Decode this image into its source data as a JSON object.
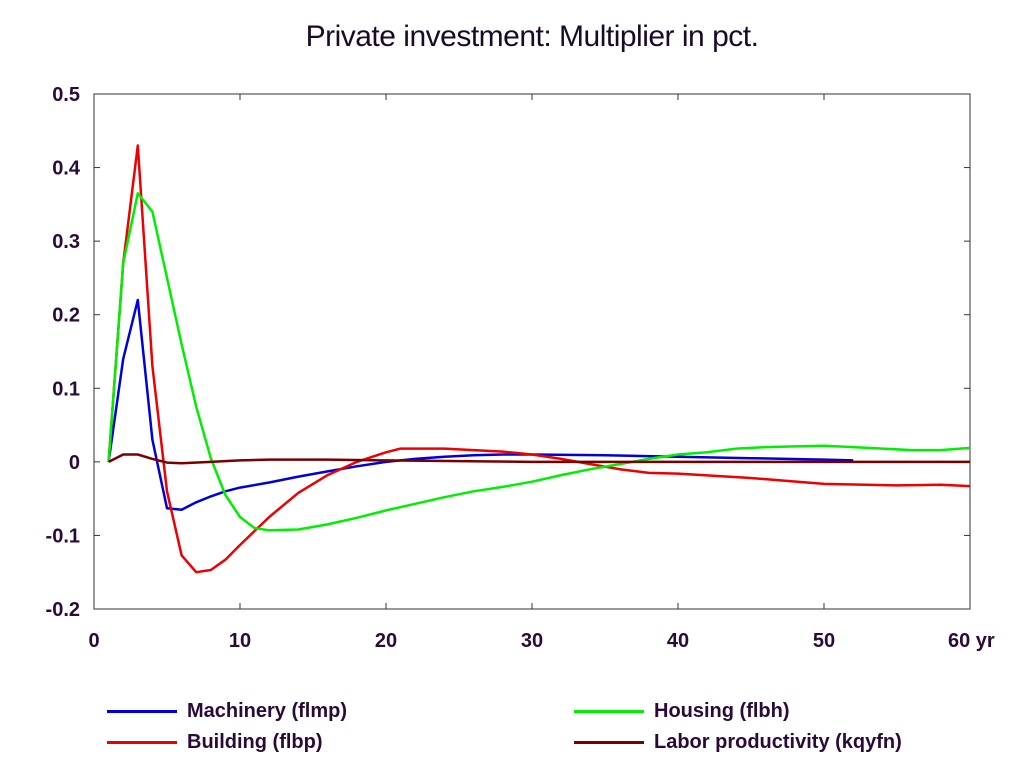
{
  "chart_data": {
    "type": "line",
    "title": "Private investment: Multiplier in pct.",
    "xlabel": "yr",
    "ylabel": "",
    "xlim": [
      0,
      60
    ],
    "ylim": [
      -0.2,
      0.5
    ],
    "xticks": [
      0,
      10,
      20,
      30,
      40,
      50,
      60
    ],
    "xtick_labels": [
      "0",
      "10",
      "20",
      "30",
      "40",
      "50",
      "60 yr"
    ],
    "yticks": [
      0.5,
      0.4,
      0.3,
      0.2,
      0.1,
      0,
      -0.1,
      -0.2
    ],
    "ytick_labels": [
      "0.5",
      "0.4",
      "0.3",
      "0.2",
      "0.1",
      "0",
      "-0.1",
      "-0.2"
    ],
    "grid": false,
    "legend_position": "bottom",
    "series": [
      {
        "name": "Machinery (flmp)",
        "color": "#0000dd",
        "x": [
          1,
          2,
          3,
          4,
          5,
          6,
          7,
          8,
          9,
          10,
          12,
          14,
          16,
          18,
          20,
          22,
          24,
          26,
          28,
          30,
          35,
          40,
          45,
          50,
          52
        ],
        "values": [
          0.0,
          0.14,
          0.22,
          0.03,
          -0.063,
          -0.065,
          -0.055,
          -0.047,
          -0.04,
          -0.035,
          -0.028,
          -0.02,
          -0.013,
          -0.006,
          0.0,
          0.004,
          0.007,
          0.009,
          0.01,
          0.01,
          0.009,
          0.007,
          0.005,
          0.003,
          0.002
        ]
      },
      {
        "name": "Building (flbp)",
        "color": "#ee0000",
        "x": [
          1,
          2,
          3,
          4,
          5,
          6,
          7,
          8,
          9,
          10,
          12,
          14,
          16,
          18,
          20,
          21,
          22,
          24,
          26,
          28,
          30,
          32,
          34,
          36,
          38,
          40,
          45,
          50,
          55,
          58,
          60
        ],
        "values": [
          0.0,
          0.27,
          0.43,
          0.13,
          -0.04,
          -0.127,
          -0.15,
          -0.147,
          -0.133,
          -0.113,
          -0.075,
          -0.042,
          -0.018,
          0.0,
          0.013,
          0.018,
          0.018,
          0.018,
          0.016,
          0.014,
          0.01,
          0.004,
          -0.003,
          -0.01,
          -0.015,
          -0.016,
          -0.022,
          -0.03,
          -0.032,
          -0.031,
          -0.033
        ]
      },
      {
        "name": "Housing (flbh)",
        "color": "#00ee00",
        "x": [
          1,
          2,
          3,
          4,
          5,
          6,
          7,
          8,
          9,
          10,
          11,
          12,
          14,
          16,
          18,
          20,
          22,
          24,
          26,
          28,
          30,
          32,
          34,
          36,
          38,
          40,
          42,
          44,
          46,
          48,
          50,
          52,
          54,
          56,
          58,
          60
        ],
        "values": [
          0.0,
          0.27,
          0.365,
          0.34,
          0.25,
          0.16,
          0.075,
          0.005,
          -0.045,
          -0.075,
          -0.09,
          -0.093,
          -0.092,
          -0.085,
          -0.076,
          -0.066,
          -0.057,
          -0.048,
          -0.04,
          -0.034,
          -0.027,
          -0.018,
          -0.01,
          -0.003,
          0.004,
          0.01,
          0.013,
          0.018,
          0.02,
          0.021,
          0.022,
          0.02,
          0.018,
          0.016,
          0.016,
          0.019
        ]
      },
      {
        "name": "Labor productivity (kqyfn)",
        "color": "#7a0000",
        "x": [
          1,
          2,
          3,
          4,
          5,
          6,
          8,
          10,
          12,
          16,
          20,
          25,
          30,
          40,
          50,
          60
        ],
        "values": [
          0.0,
          0.01,
          0.01,
          0.004,
          -0.001,
          -0.002,
          0.0,
          0.002,
          0.003,
          0.003,
          0.002,
          0.001,
          0.0,
          0.0,
          0.0,
          0.0
        ]
      }
    ]
  }
}
